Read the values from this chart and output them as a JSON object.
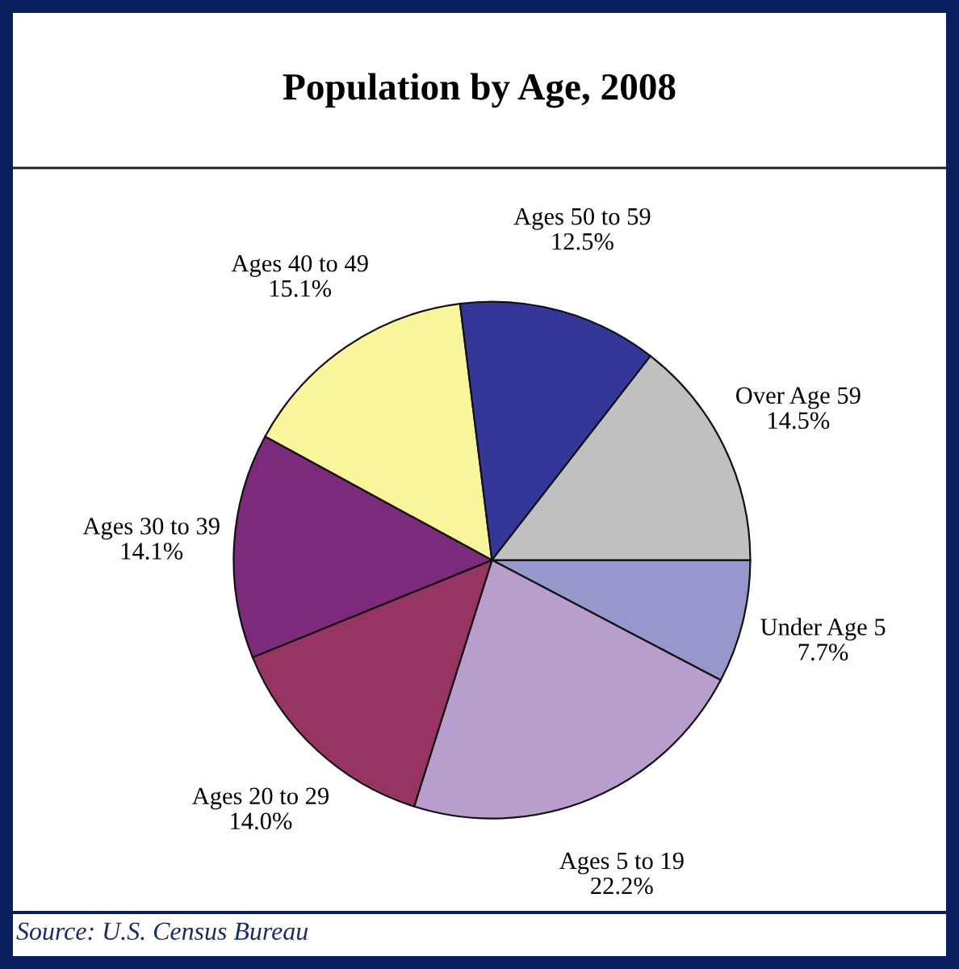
{
  "chart_data": {
    "type": "pie",
    "title": "Population by Age, 2008",
    "categories": [
      "Under Age 5",
      "Ages 5 to 19",
      "Ages 20 to 29",
      "Ages 30 to 39",
      "Ages 40 to 49",
      "Ages 50 to 59",
      "Over Age 59"
    ],
    "values": [
      7.7,
      22.2,
      14.0,
      14.1,
      15.1,
      12.5,
      14.5
    ],
    "value_labels": [
      "7.7%",
      "22.2%",
      "14.0%",
      "14.1%",
      "15.1%",
      "12.5%",
      "14.5%"
    ],
    "colors": [
      "#9797cb",
      "#b99dcc",
      "#983462",
      "#7c2a7c",
      "#fbf59c",
      "#34379a",
      "#c0c0c0"
    ],
    "annotations": [
      "Source: U.S. Census Bureau"
    ]
  }
}
